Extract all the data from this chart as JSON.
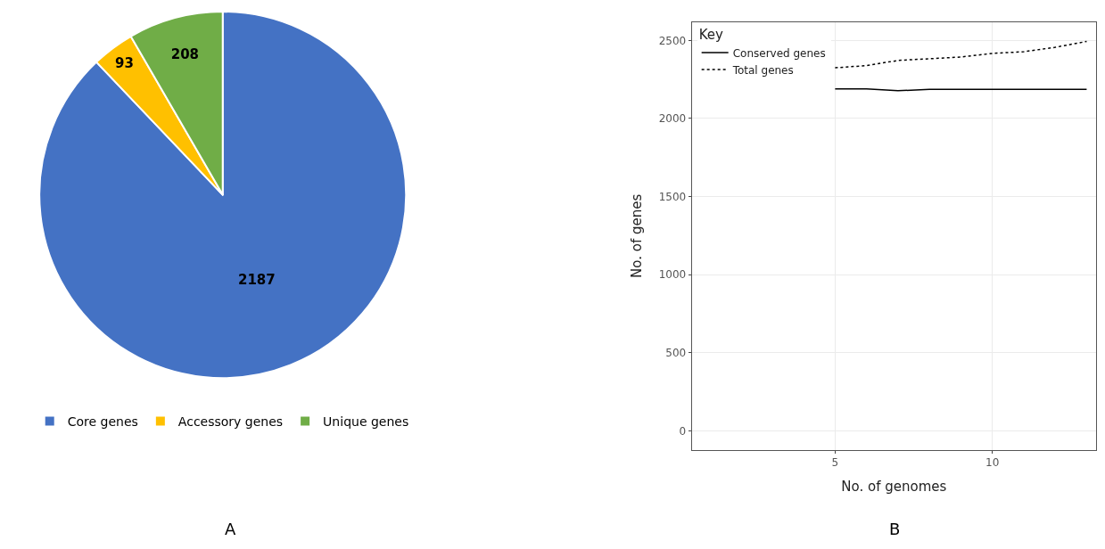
{
  "chart_data": [
    {
      "type": "pie",
      "categories": [
        "Core genes",
        "Accessory genes",
        "Unique genes"
      ],
      "values": [
        2187,
        93,
        208
      ],
      "colors": [
        "#4472c4",
        "#ffc000",
        "#70ad47"
      ],
      "data_labels": true,
      "legend": "bottom",
      "annotations": [
        "A"
      ]
    },
    {
      "type": "line",
      "xlabel": "No. of genomes",
      "ylabel": "No. of genes",
      "legend_title": "Key",
      "x": [
        5,
        6,
        7,
        8,
        9,
        10,
        11,
        12,
        13
      ],
      "series": [
        {
          "name": "Conserved genes",
          "color": "#000000",
          "line_style": "solid",
          "values": [
            2189,
            2189,
            2178,
            2187,
            2187,
            2187,
            2187,
            2187,
            2187
          ]
        },
        {
          "name": "Total genes",
          "color": "#000000",
          "line_style": "dotted",
          "values": [
            2325,
            2339,
            2372,
            2383,
            2394,
            2417,
            2428,
            2456,
            2494
          ]
        }
      ],
      "xlim": [
        0.44,
        13.3
      ],
      "xticks": [
        5,
        10
      ],
      "ylim": [
        -122,
        2617
      ],
      "yticks": [
        0,
        500,
        1000,
        1500,
        2000,
        2500
      ],
      "grid": true,
      "legend": "top left",
      "annotations": [
        "B"
      ]
    }
  ]
}
